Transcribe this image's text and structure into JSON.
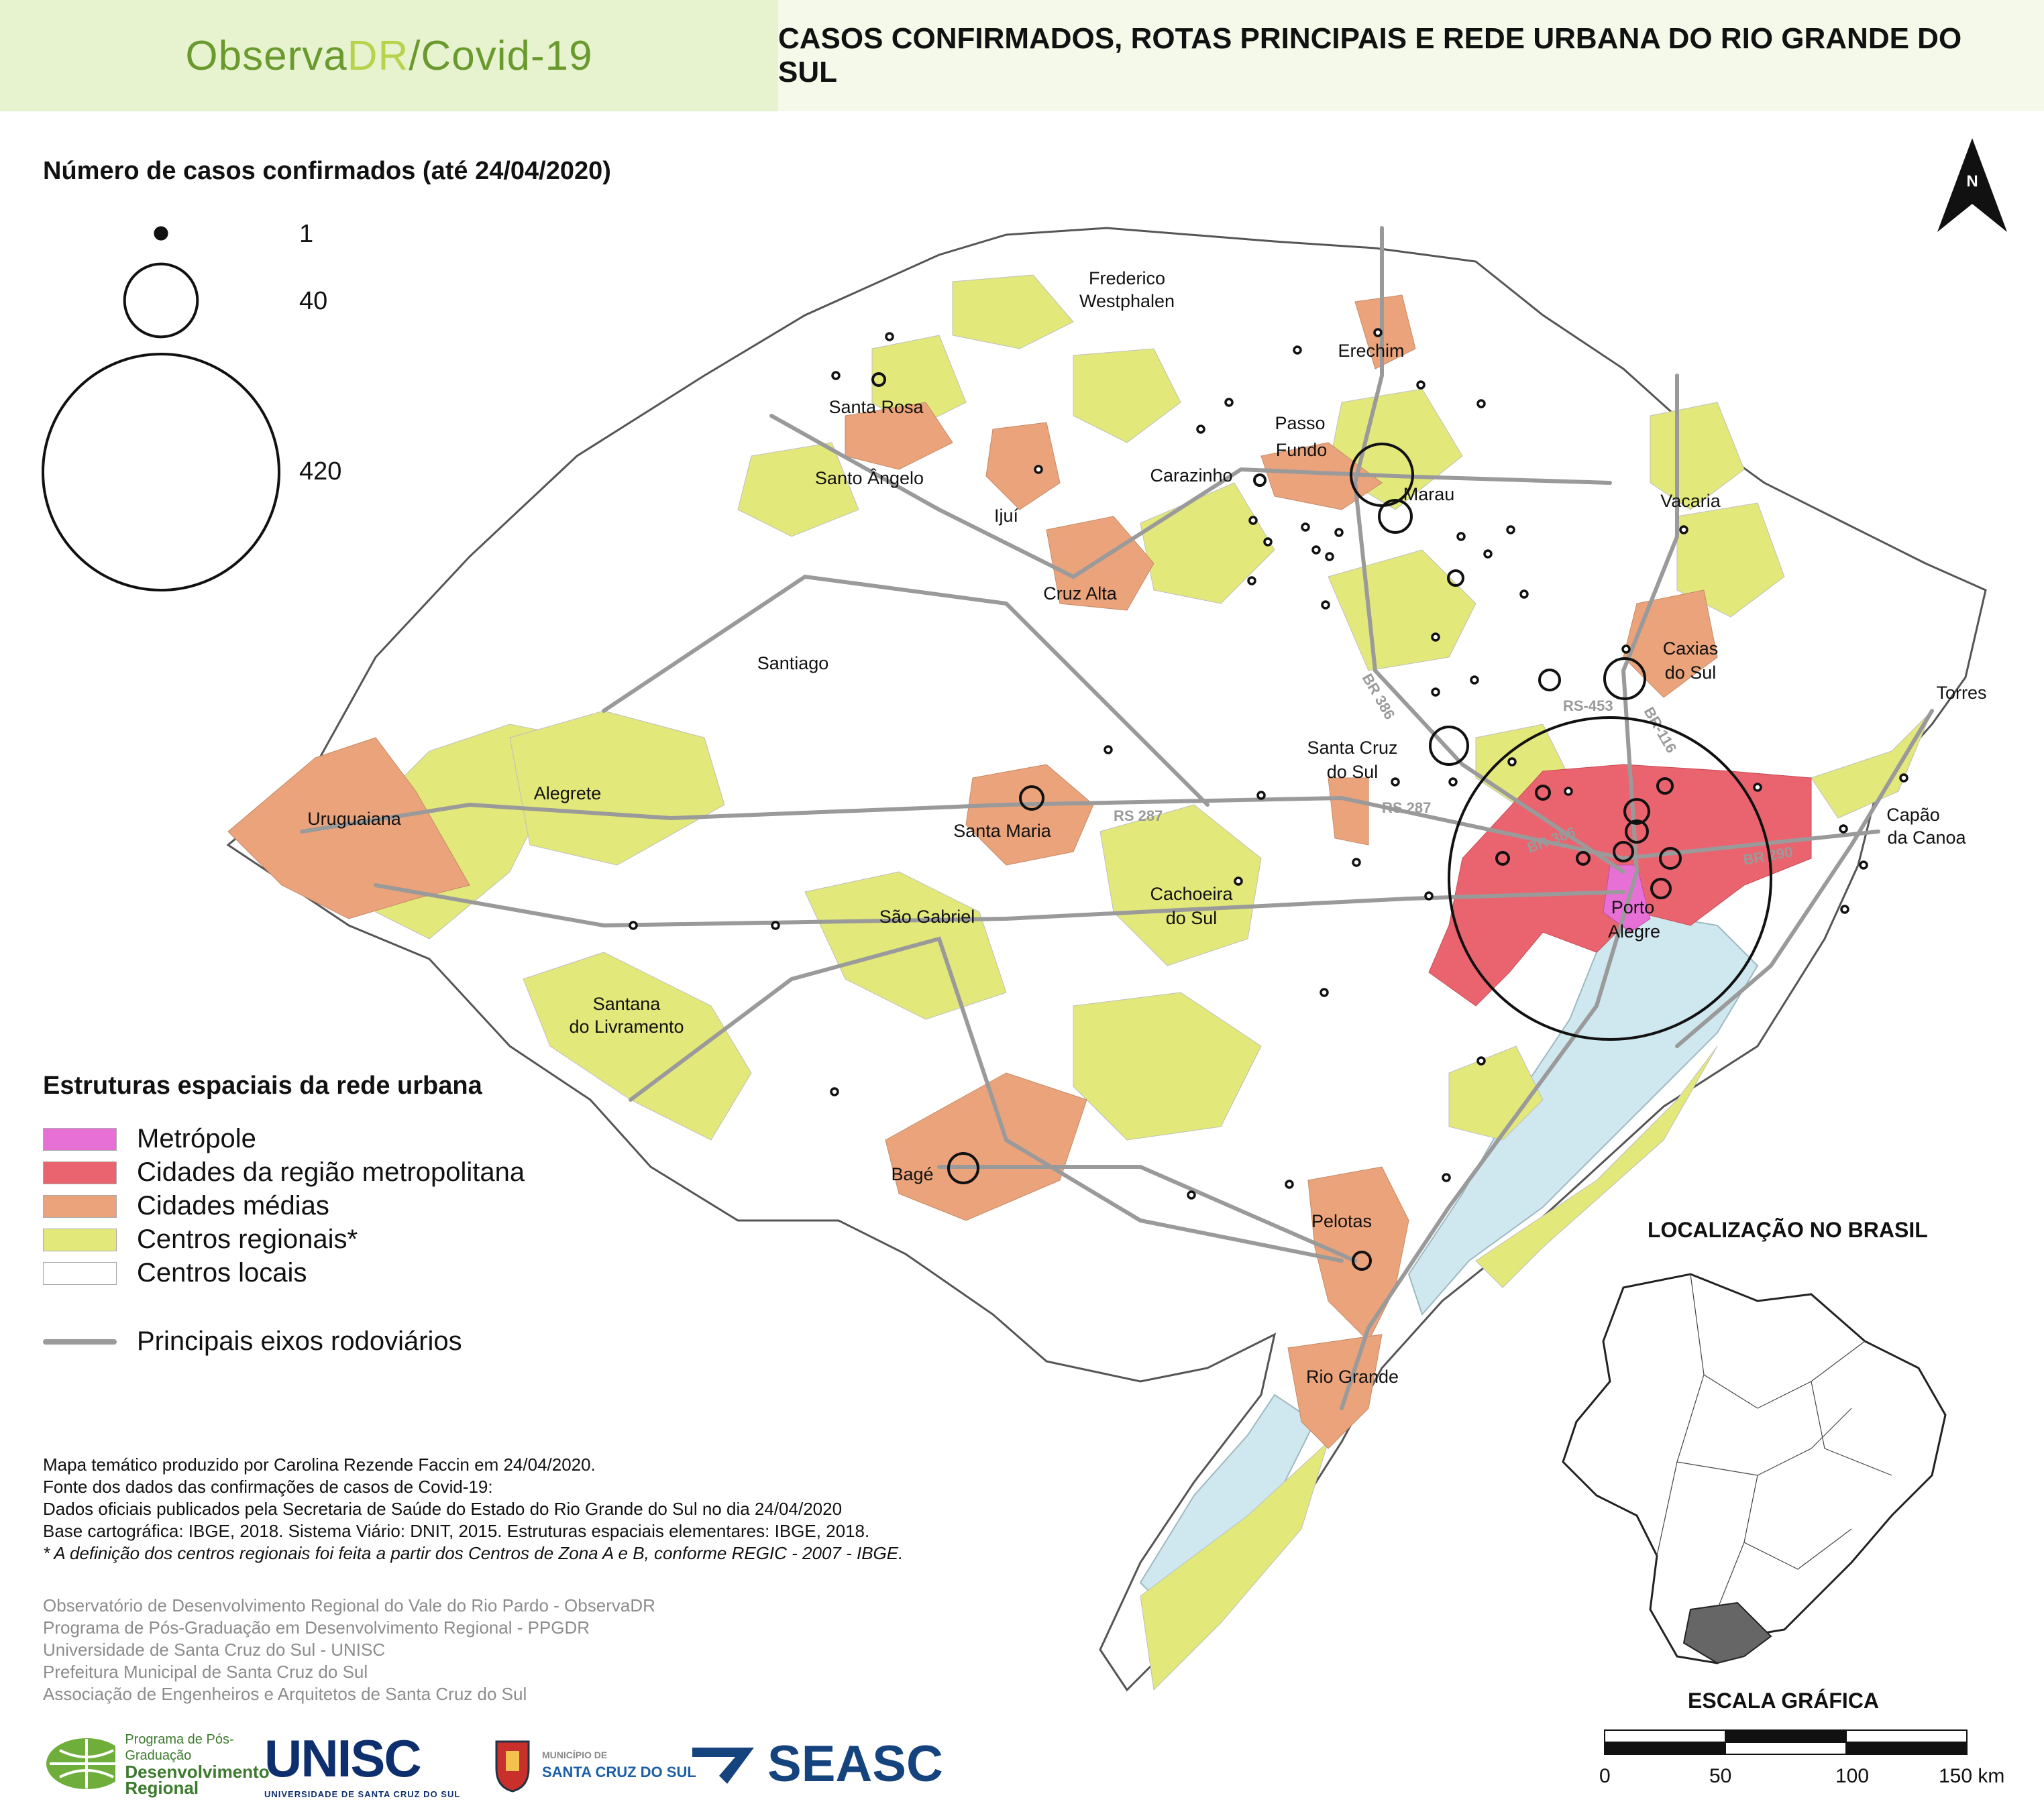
{
  "header": {
    "brand_prefix": "Observa",
    "brand_highlight": "DR",
    "brand_suffix": "/Covid-19",
    "title": "CASOS CONFIRMADOS, ROTAS PRINCIPAIS E REDE URBANA DO RIO GRANDE DO SUL"
  },
  "cases_legend": {
    "title": "Número de casos confirmados (até 24/04/2020)",
    "sizes": [
      {
        "cases": 1,
        "label": "1"
      },
      {
        "cases": 40,
        "label": "40"
      },
      {
        "cases": 420,
        "label": "420"
      }
    ]
  },
  "structure_legend": {
    "title": "Estruturas espaciais da rede urbana",
    "items": [
      {
        "label": "Metrópole",
        "color": "#e770d6"
      },
      {
        "label": "Cidades da região metropolitana",
        "color": "#e9646f"
      },
      {
        "label": "Cidades médias",
        "color": "#eba37b"
      },
      {
        "label": "Centros regionais*",
        "color": "#e2e87a"
      },
      {
        "label": "Centros locais",
        "color": "#ffffff"
      }
    ],
    "road_label": "Principais eixos rodoviários",
    "road_color": "#9a9a9a"
  },
  "colors": {
    "lagoon": "#cfe7ee",
    "state_outline": "#555555",
    "municipal_border": "#cfcfcf"
  },
  "compass": {
    "label": "N"
  },
  "cities": [
    {
      "name": "Frederico",
      "name2": "Westphalen"
    },
    {
      "name": "Erechim"
    },
    {
      "name": "Santa Rosa"
    },
    {
      "name": "Passo",
      "name2": "Fundo"
    },
    {
      "name": "Santo Ângelo"
    },
    {
      "name": "Carazinho"
    },
    {
      "name": "Marau"
    },
    {
      "name": "Vacaria"
    },
    {
      "name": "Ijuí"
    },
    {
      "name": "Cruz Alta"
    },
    {
      "name": "Caxias",
      "name2": "do Sul"
    },
    {
      "name": "Santiago"
    },
    {
      "name": "Torres"
    },
    {
      "name": "Santa Cruz",
      "name2": "do Sul"
    },
    {
      "name": "Uruguaiana"
    },
    {
      "name": "Alegrete"
    },
    {
      "name": "Santa Maria"
    },
    {
      "name": "Capão",
      "name2": "da Canoa"
    },
    {
      "name": "Cachoeira",
      "name2": "do Sul"
    },
    {
      "name": "São Gabriel"
    },
    {
      "name": "Porto",
      "name2": "Alegre"
    },
    {
      "name": "Santana",
      "name2": "do Livramento"
    },
    {
      "name": "Bagé"
    },
    {
      "name": "Pelotas"
    },
    {
      "name": "Rio Grande"
    }
  ],
  "roads": [
    "BR 386",
    "RS-453",
    "BR-116",
    "RS 287",
    "RS 287",
    "BR 386",
    "BR 290"
  ],
  "credits": {
    "lines": [
      "Mapa temático produzido por Carolina Rezende Faccin em 24/04/2020.",
      "Fonte dos dados das confirmações de casos de Covid-19:",
      "Dados oficiais publicados pela Secretaria de Saúde do Estado do Rio Grande do Sul no dia 24/04/2020",
      "Base cartográfica: IBGE, 2018. Sistema Viário: DNIT, 2015. Estruturas espaciais elementares: IBGE, 2018."
    ],
    "note": "* A definição dos centros regionais foi feita a partir dos Centros de Zona A e B, conforme REGIC - 2007 - IBGE."
  },
  "institutions": [
    "Observatório de Desenvolvimento Regional do Vale do Rio Pardo -  ObservaDR",
    "Programa de Pós-Graduação em Desenvolvimento Regional - PPGDR",
    "Universidade de Santa Cruz do Sul - UNISC",
    "Prefeitura Municipal de Santa Cruz do Sul",
    "Associação de Engenheiros e Arquitetos de Santa Cruz do Sul"
  ],
  "logos": {
    "pgdr_line1": "Programa de Pós-Graduação",
    "pgdr_line2": "Desenvolvimento",
    "pgdr_line3": "Regional",
    "unisc": "UNISC",
    "unisc_sub": "UNIVERSIDADE DE SANTA CRUZ DO SUL",
    "scs_line1": "MUNICÍPIO DE",
    "scs_line2": "SANTA CRUZ DO SUL",
    "seasc": "SEASC"
  },
  "inset": {
    "title": "LOCALIZAÇÃO NO BRASIL"
  },
  "scale": {
    "title": "ESCALA GRÁFICA",
    "labels": [
      "0",
      "50",
      "100",
      "150 km"
    ]
  }
}
